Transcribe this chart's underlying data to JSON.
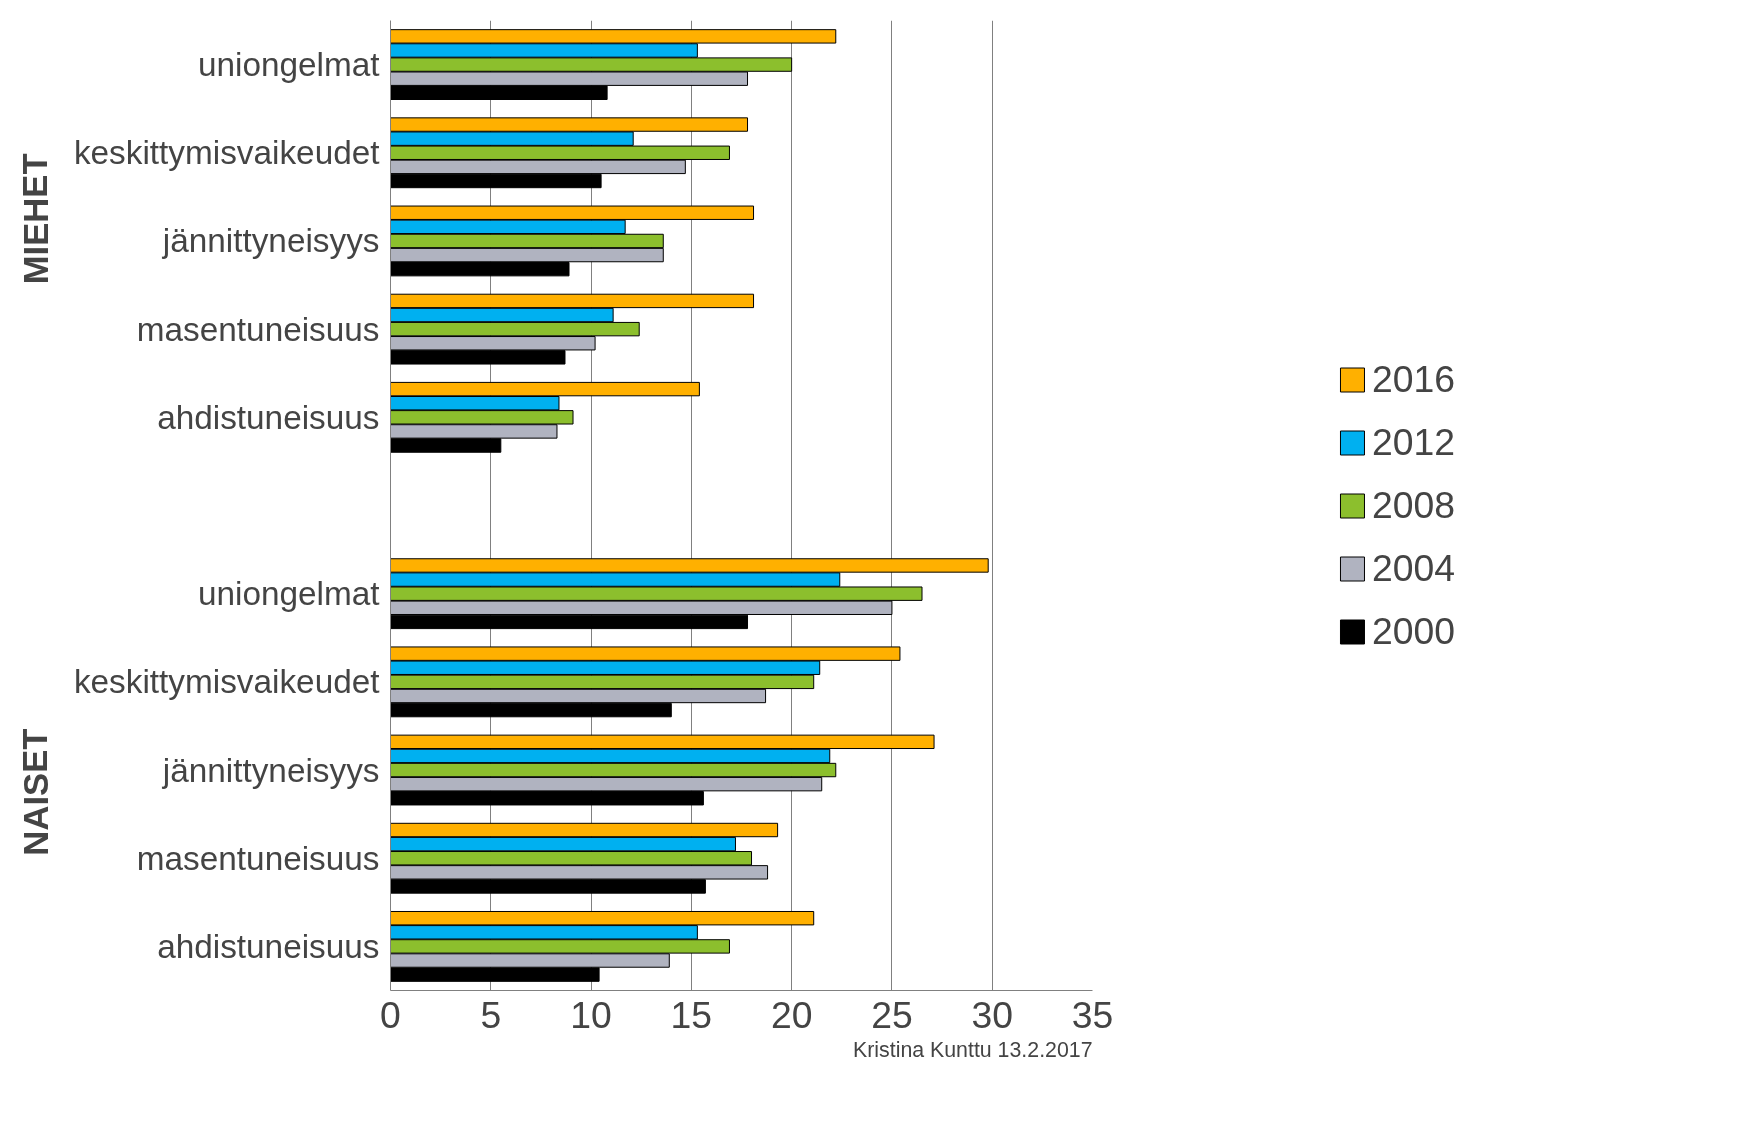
{
  "chart_data": {
    "type": "bar",
    "orientation": "horizontal",
    "categories": [
      "uniongelmat",
      "keskittymisvaikeudet",
      "jännittyneisyys",
      "masentuneisuus",
      "ahdistuneisuus",
      null,
      "uniongelmat",
      "keskittymisvaikeudet",
      "jännittyneisyys",
      "masentuneisuus",
      "ahdistuneisuus"
    ],
    "series": [
      {
        "name": "2016",
        "color": "#ffb000",
        "values": [
          22.2,
          17.8,
          18.1,
          18.1,
          15.4,
          null,
          29.8,
          25.4,
          27.1,
          19.3,
          21.1
        ]
      },
      {
        "name": "2012",
        "color": "#00b0f0",
        "values": [
          15.3,
          12.1,
          11.7,
          11.1,
          8.4,
          null,
          22.4,
          21.4,
          21.9,
          17.2,
          15.3
        ]
      },
      {
        "name": "2008",
        "color": "#8cbf2d",
        "values": [
          20.0,
          16.9,
          13.6,
          12.4,
          9.1,
          null,
          26.5,
          21.1,
          22.2,
          18.0,
          16.9
        ]
      },
      {
        "name": "2004",
        "color": "#b0b3c0",
        "values": [
          17.8,
          14.7,
          13.6,
          10.2,
          8.3,
          null,
          25.0,
          18.7,
          21.5,
          18.8,
          13.9
        ]
      },
      {
        "name": "2000",
        "color": "#000000",
        "values": [
          10.8,
          10.5,
          8.9,
          8.7,
          5.5,
          null,
          17.8,
          14.0,
          15.6,
          15.7,
          10.4
        ]
      }
    ],
    "xlim": [
      0,
      35
    ],
    "xticks": [
      0,
      5,
      10,
      15,
      20,
      25,
      30,
      35
    ],
    "grid": "x",
    "legend": "right",
    "annotations": [
      "MIEHET",
      "NAISET",
      "Kristina Kunttu 13.2.2017"
    ]
  }
}
